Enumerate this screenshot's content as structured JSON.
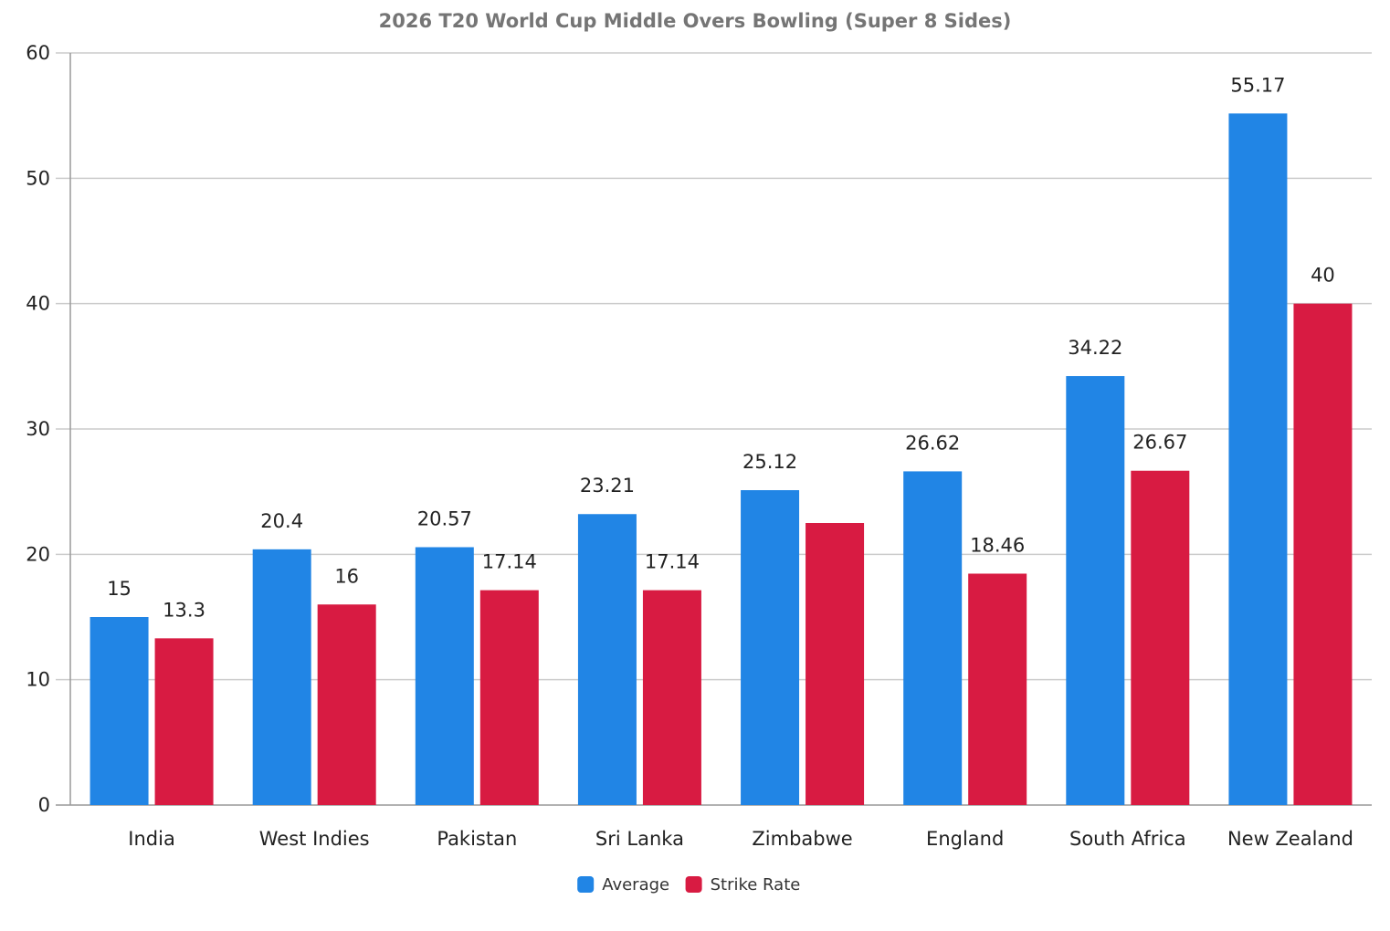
{
  "chart_data": {
    "type": "bar",
    "title": "2026 T20 World Cup Middle Overs Bowling (Super 8 Sides)",
    "xlabel": "",
    "ylabel": "",
    "ylim": [
      0,
      60
    ],
    "yticks": [
      0,
      10,
      20,
      30,
      40,
      50,
      60
    ],
    "grid": true,
    "legend_position": "bottom-center",
    "categories": [
      "India",
      "West Indies",
      "Pakistan",
      "Sri Lanka",
      "Zimbabwe",
      "England",
      "South Africa",
      "New Zealand"
    ],
    "series": [
      {
        "name": "Average",
        "color": "#2185e5",
        "values": [
          15,
          20.4,
          20.57,
          23.21,
          25.12,
          26.62,
          34.22,
          55.17
        ],
        "labels": [
          "15",
          "20.4",
          "20.57",
          "23.21",
          "25.12",
          "26.62",
          "34.22",
          "55.17"
        ]
      },
      {
        "name": "Strike Rate",
        "color": "#d81b42",
        "values": [
          13.3,
          16,
          17.14,
          17.14,
          22.5,
          18.46,
          26.67,
          40
        ],
        "labels": [
          "13.3",
          "16",
          "17.14",
          "17.14",
          "",
          "18.46",
          "26.67",
          "40"
        ]
      }
    ]
  }
}
